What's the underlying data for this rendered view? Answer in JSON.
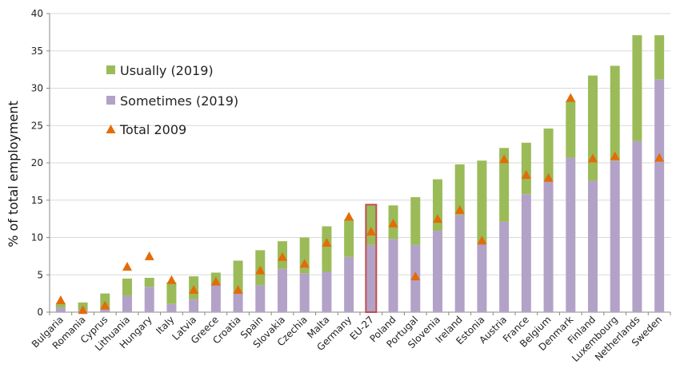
{
  "chart_data": {
    "type": "bar",
    "stacked": true,
    "ylabel": "% of total employment",
    "ylim": [
      0,
      40
    ],
    "yticks": [
      0,
      5,
      10,
      15,
      20,
      25,
      30,
      35,
      40
    ],
    "grid": true,
    "legend_position": "top-left",
    "highlighted_category": "EU-27",
    "categories": [
      "Bulgaria",
      "Romania",
      "Cyprus",
      "Lithuania",
      "Hungary",
      "Italy",
      "Latvia",
      "Greece",
      "Croatia",
      "Spain",
      "Slovakia",
      "Czechia",
      "Malta",
      "Germany",
      "EU-27",
      "Poland",
      "Portugal",
      "Slovenia",
      "Ireland",
      "Estonia",
      "Austria",
      "France",
      "Belgium",
      "Denmark",
      "Finland",
      "Luxembourg",
      "Netherlands",
      "Sweden"
    ],
    "series": [
      {
        "name": "Sometimes (2019)",
        "kind": "bar",
        "color": "#b3a2c7",
        "values": [
          0.6,
          0.3,
          0.4,
          2.2,
          3.4,
          1.1,
          1.7,
          3.6,
          2.6,
          3.6,
          5.8,
          5.2,
          5.4,
          7.4,
          9.0,
          9.8,
          9.0,
          10.9,
          13.0,
          9.2,
          12.1,
          15.8,
          17.6,
          20.7,
          17.6,
          20.3,
          22.9,
          31.2
        ]
      },
      {
        "name": "Usually (2019)",
        "kind": "bar",
        "color": "#9bbb59",
        "values": [
          0.6,
          1.0,
          2.1,
          2.3,
          1.2,
          2.9,
          3.1,
          1.7,
          4.3,
          4.7,
          3.7,
          4.8,
          6.1,
          5.0,
          5.4,
          4.5,
          6.4,
          6.9,
          6.8,
          11.1,
          9.9,
          6.9,
          7.0,
          7.6,
          14.1,
          12.7,
          14.2,
          5.9
        ]
      },
      {
        "name": "Total 2009",
        "kind": "marker",
        "color": "#e36c09",
        "values": [
          1.6,
          0.3,
          0.9,
          6.1,
          7.5,
          4.3,
          3.0,
          4.1,
          3.0,
          5.6,
          7.4,
          6.5,
          9.3,
          12.8,
          10.8,
          11.9,
          4.8,
          12.5,
          13.7,
          9.6,
          20.5,
          18.4,
          18.0,
          28.7,
          20.6,
          20.9,
          null,
          20.7
        ]
      }
    ]
  }
}
